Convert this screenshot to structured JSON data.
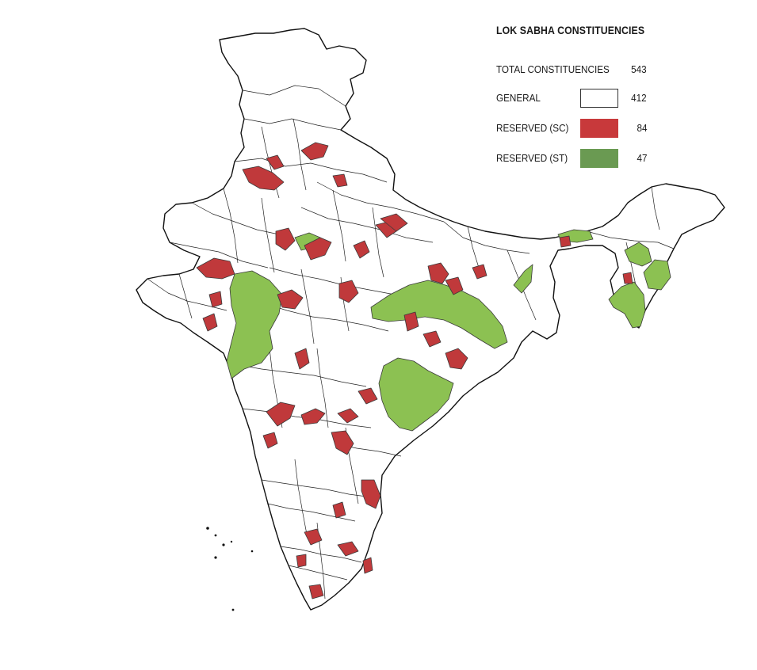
{
  "legend": {
    "title": "LOK SABHA CONSTITUENCIES",
    "total": {
      "label": "TOTAL CONSTITUENCIES",
      "count": "543"
    },
    "categories": [
      {
        "key": "general",
        "label": "GENERAL",
        "count": "412",
        "color": "#ffffff"
      },
      {
        "key": "sc",
        "label": "RESERVED (SC)",
        "count": "84",
        "color": "#c8393b"
      },
      {
        "key": "st",
        "label": "RESERVED (ST)",
        "count": "47",
        "color": "#6a9a52"
      }
    ]
  },
  "map": {
    "subject": "india-constituency-map",
    "category_colors": {
      "general": "#ffffff",
      "sc": "#c0393b",
      "st": "#8cc152",
      "outline": "#111111"
    }
  }
}
